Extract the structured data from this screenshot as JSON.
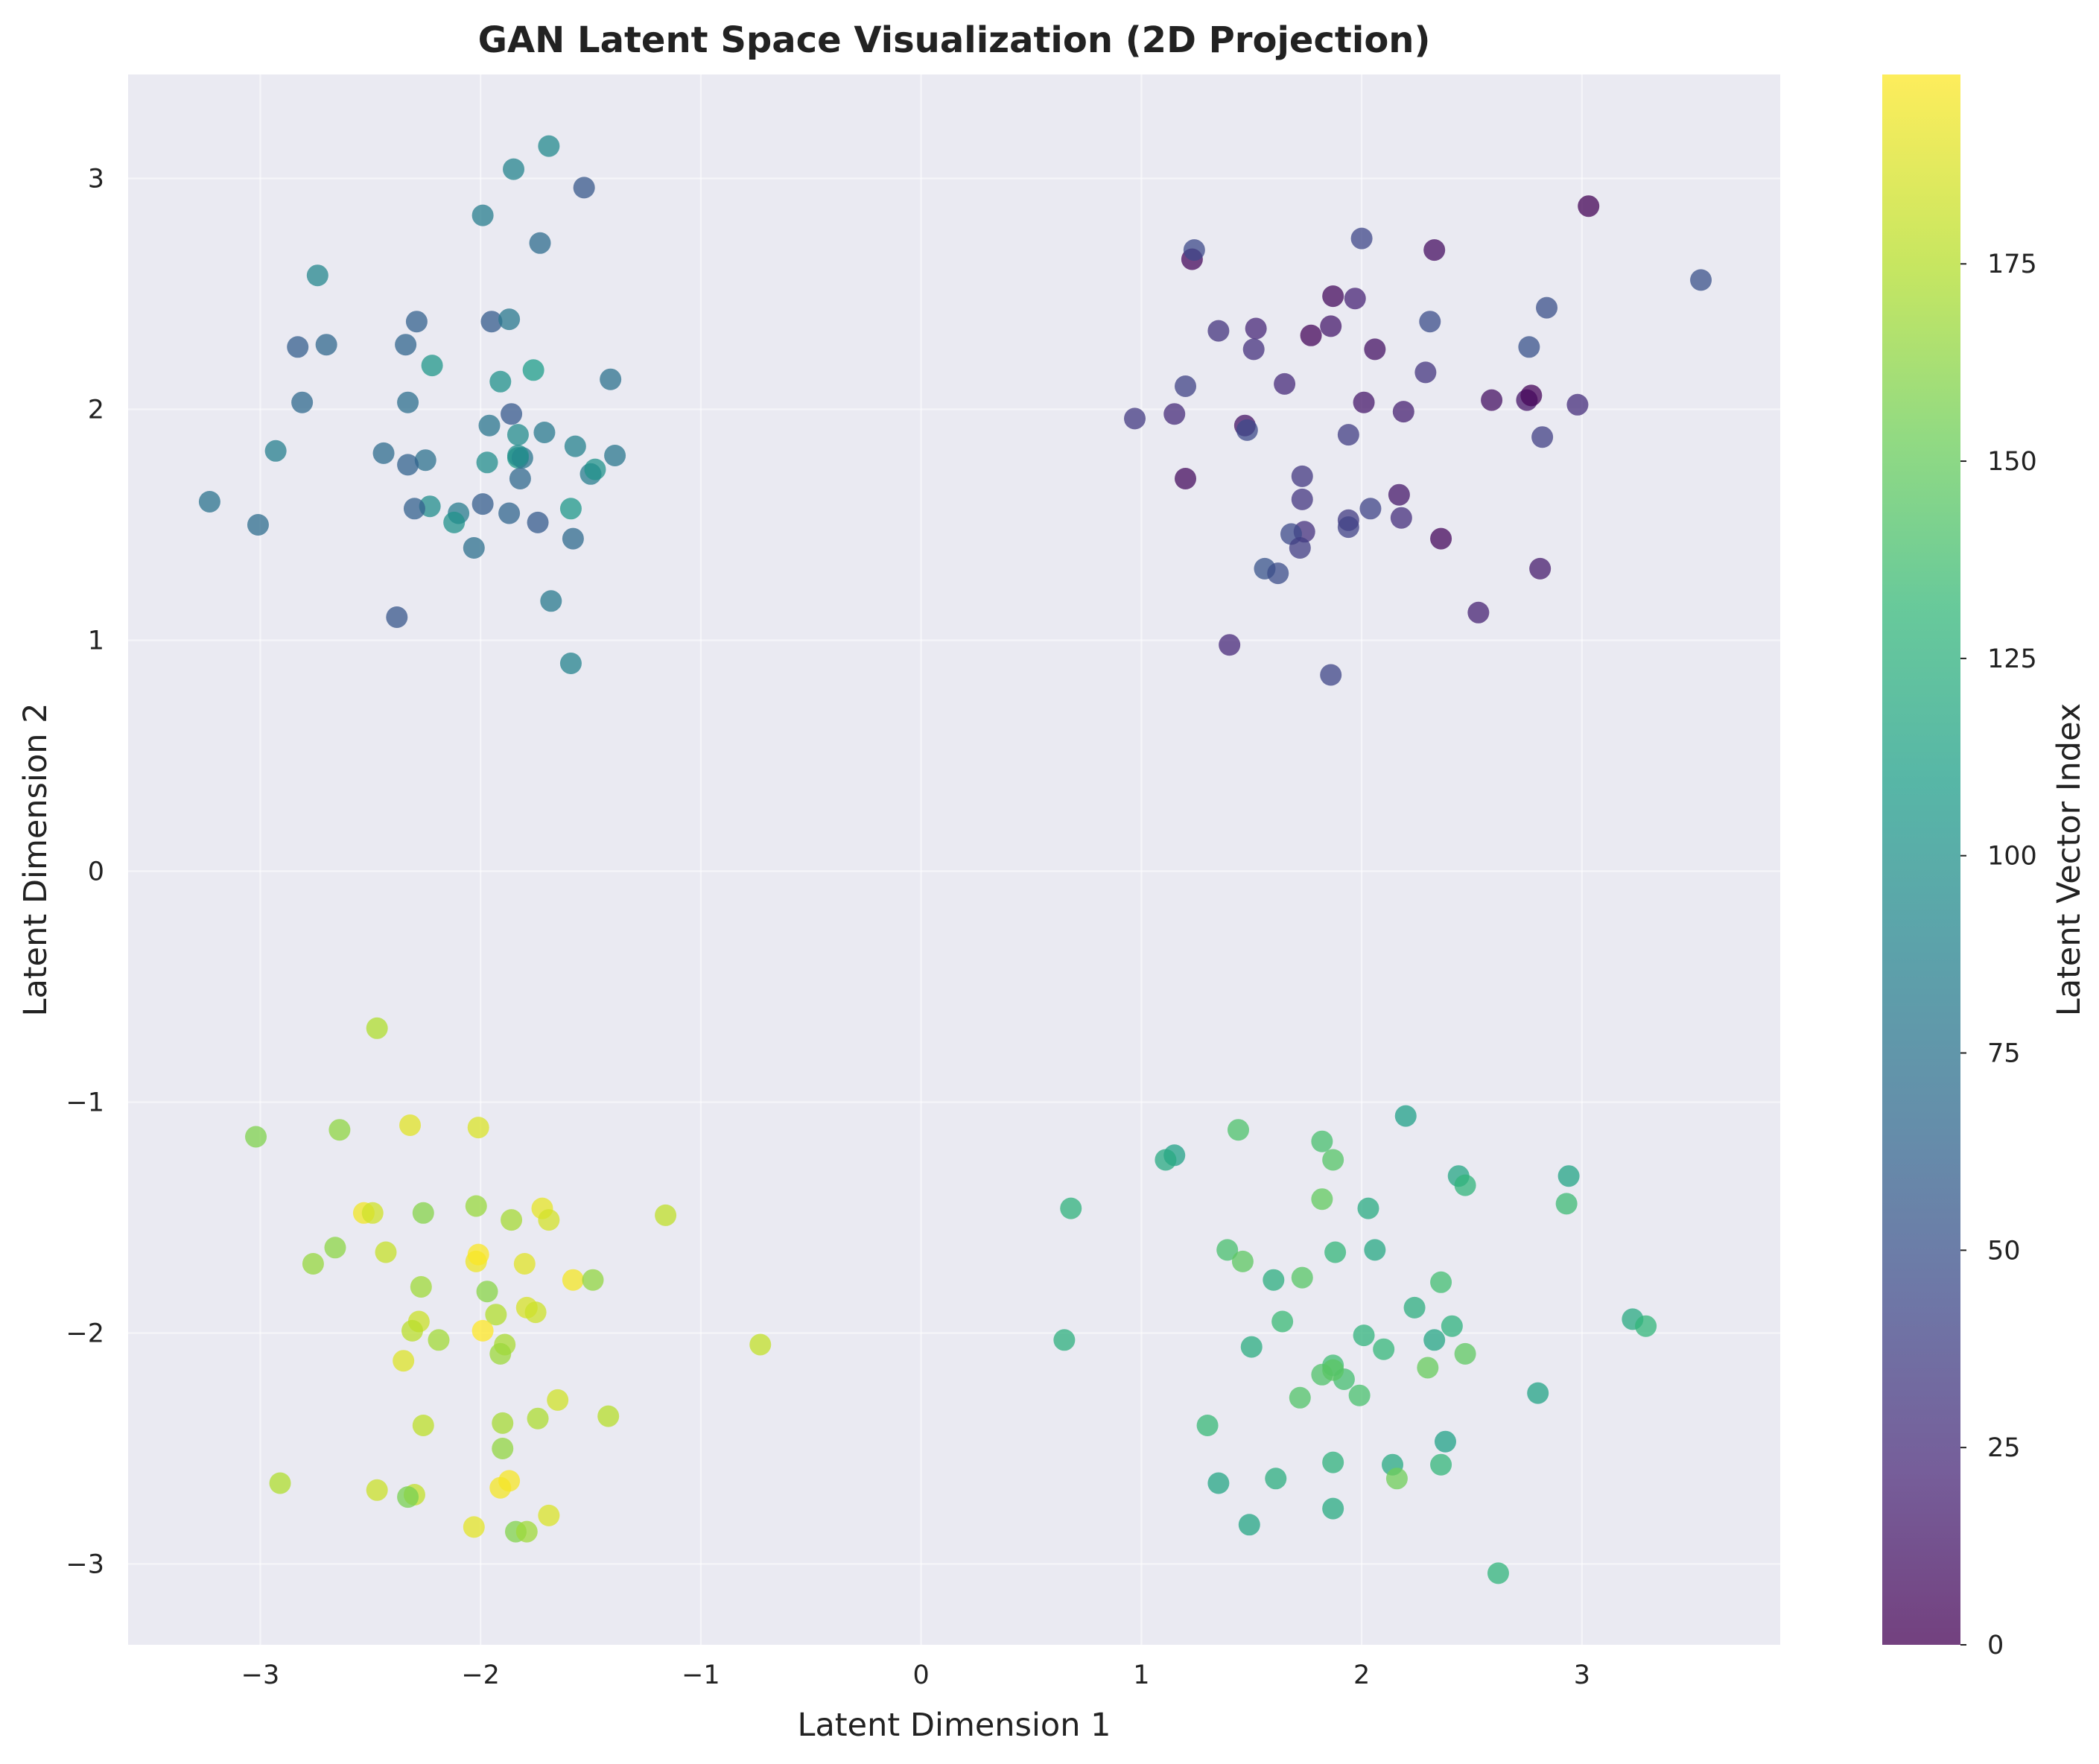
{
  "chart_data": {
    "type": "scatter",
    "title": "GAN Latent Space Visualization (2D Projection)",
    "xlabel": "Latent Dimension 1",
    "ylabel": "Latent Dimension 2",
    "xlim": [
      -3.6,
      3.9
    ],
    "ylim": [
      -3.35,
      3.45
    ],
    "xticks": [
      -3,
      -2,
      -1,
      0,
      1,
      2,
      3
    ],
    "yticks": [
      -3,
      -2,
      -1,
      0,
      1,
      2,
      3
    ],
    "grid": true,
    "colormap": "viridis",
    "colorbar": {
      "label": "Latent Vector Index",
      "range": [
        0,
        199
      ],
      "ticks": [
        0,
        25,
        50,
        75,
        100,
        125,
        150,
        175
      ]
    },
    "colors": {
      "plot_background": "#eaeaf2",
      "grid": "#ffffff"
    },
    "series": [
      {
        "points": [
          [
            3.03,
            2.88,
            2
          ],
          [
            1.23,
            2.65,
            5
          ],
          [
            2.33,
            2.69,
            8
          ],
          [
            1.87,
            2.49,
            6
          ],
          [
            1.97,
            2.48,
            20
          ],
          [
            1.52,
            2.35,
            22
          ],
          [
            1.35,
            2.34,
            30
          ],
          [
            1.77,
            2.32,
            4
          ],
          [
            1.86,
            2.36,
            15
          ],
          [
            2.06,
            2.26,
            10
          ],
          [
            1.51,
            2.26,
            28
          ],
          [
            1.65,
            2.11,
            24
          ],
          [
            1.2,
            2.1,
            40
          ],
          [
            2.59,
            2.04,
            9
          ],
          [
            2.75,
            2.04,
            12
          ],
          [
            2.77,
            2.06,
            3
          ],
          [
            2.01,
            2.03,
            14
          ],
          [
            2.98,
            2.02,
            26
          ],
          [
            2.19,
            1.99,
            18
          ],
          [
            0.97,
            1.96,
            34
          ],
          [
            1.15,
            1.98,
            25
          ],
          [
            1.47,
            1.93,
            11
          ],
          [
            1.48,
            1.91,
            44
          ],
          [
            1.94,
            1.89,
            36
          ],
          [
            2.82,
            1.88,
            38
          ],
          [
            1.2,
            1.7,
            7
          ],
          [
            1.73,
            1.71,
            33
          ],
          [
            2.17,
            1.63,
            13
          ],
          [
            1.73,
            1.61,
            32
          ],
          [
            2.04,
            1.57,
            41
          ],
          [
            1.94,
            1.52,
            35
          ],
          [
            2.18,
            1.53,
            27
          ],
          [
            1.94,
            1.49,
            39
          ],
          [
            1.74,
            1.47,
            29
          ],
          [
            1.68,
            1.46,
            46
          ],
          [
            2.36,
            1.44,
            5
          ],
          [
            1.72,
            1.4,
            37
          ],
          [
            1.56,
            1.31,
            52
          ],
          [
            1.62,
            1.29,
            48
          ],
          [
            2.81,
            1.31,
            16
          ],
          [
            2.53,
            1.12,
            19
          ],
          [
            1.4,
            0.98,
            23
          ],
          [
            1.86,
            0.85,
            42
          ],
          [
            2.0,
            2.74,
            43
          ],
          [
            1.24,
            2.69,
            45
          ],
          [
            2.31,
            2.38,
            47
          ],
          [
            2.84,
            2.44,
            49
          ],
          [
            2.29,
            2.16,
            31
          ],
          [
            2.76,
            2.27,
            51
          ],
          [
            3.54,
            2.56,
            50
          ]
        ]
      },
      {
        "points": [
          [
            -1.69,
            3.14,
            95
          ],
          [
            -1.85,
            3.04,
            90
          ],
          [
            -1.53,
            2.96,
            55
          ],
          [
            -1.99,
            2.84,
            85
          ],
          [
            -1.73,
            2.72,
            70
          ],
          [
            -2.74,
            2.58,
            92
          ],
          [
            -2.29,
            2.38,
            62
          ],
          [
            -1.95,
            2.38,
            58
          ],
          [
            -1.87,
            2.39,
            80
          ],
          [
            -2.83,
            2.27,
            60
          ],
          [
            -2.7,
            2.28,
            66
          ],
          [
            -2.34,
            2.28,
            64
          ],
          [
            -2.22,
            2.19,
            105
          ],
          [
            -1.76,
            2.17,
            110
          ],
          [
            -1.91,
            2.12,
            100
          ],
          [
            -1.41,
            2.13,
            75
          ],
          [
            -2.81,
            2.03,
            68
          ],
          [
            -2.33,
            2.03,
            72
          ],
          [
            -1.86,
            1.98,
            56
          ],
          [
            -1.96,
            1.93,
            78
          ],
          [
            -1.83,
            1.89,
            96
          ],
          [
            -1.71,
            1.9,
            82
          ],
          [
            -2.93,
            1.82,
            86
          ],
          [
            -1.57,
            1.84,
            88
          ],
          [
            -2.44,
            1.81,
            70
          ],
          [
            -2.25,
            1.78,
            74
          ],
          [
            -2.33,
            1.76,
            63
          ],
          [
            -1.97,
            1.77,
            98
          ],
          [
            -1.83,
            1.79,
            108
          ],
          [
            -1.81,
            1.79,
            77
          ],
          [
            -1.5,
            1.72,
            84
          ],
          [
            -1.48,
            1.74,
            102
          ],
          [
            -1.39,
            1.8,
            79
          ],
          [
            -1.82,
            1.7,
            67
          ],
          [
            -3.23,
            1.6,
            76
          ],
          [
            -2.23,
            1.58,
            97
          ],
          [
            -2.3,
            1.57,
            61
          ],
          [
            -1.99,
            1.59,
            59
          ],
          [
            -2.1,
            1.55,
            83
          ],
          [
            -1.87,
            1.55,
            65
          ],
          [
            -1.59,
            1.57,
            106
          ],
          [
            -2.12,
            1.51,
            101
          ],
          [
            -1.74,
            1.51,
            57
          ],
          [
            -3.01,
            1.5,
            71
          ],
          [
            -1.58,
            1.44,
            69
          ],
          [
            -2.03,
            1.4,
            73
          ],
          [
            -1.68,
            1.17,
            81
          ],
          [
            -2.38,
            1.1,
            54
          ],
          [
            -1.59,
            0.9,
            89
          ],
          [
            -1.83,
            1.8,
            99
          ]
        ]
      },
      {
        "points": [
          [
            2.2,
            -1.06,
            112
          ],
          [
            1.44,
            -1.12,
            142
          ],
          [
            1.15,
            -1.23,
            114
          ],
          [
            1.82,
            -1.17,
            140
          ],
          [
            1.11,
            -1.25,
            120
          ],
          [
            1.87,
            -1.25,
            145
          ],
          [
            2.44,
            -1.32,
            118
          ],
          [
            2.47,
            -1.36,
            130
          ],
          [
            2.94,
            -1.32,
            116
          ],
          [
            1.82,
            -1.42,
            150
          ],
          [
            0.68,
            -1.46,
            128
          ],
          [
            2.03,
            -1.46,
            122
          ],
          [
            2.93,
            -1.44,
            136
          ],
          [
            1.39,
            -1.64,
            140
          ],
          [
            1.46,
            -1.69,
            148
          ],
          [
            1.88,
            -1.65,
            132
          ],
          [
            2.06,
            -1.64,
            119
          ],
          [
            1.6,
            -1.77,
            124
          ],
          [
            1.73,
            -1.76,
            146
          ],
          [
            2.36,
            -1.78,
            138
          ],
          [
            2.24,
            -1.89,
            125
          ],
          [
            1.64,
            -1.95,
            135
          ],
          [
            2.41,
            -1.97,
            127
          ],
          [
            3.23,
            -1.94,
            121
          ],
          [
            3.29,
            -1.97,
            131
          ],
          [
            0.65,
            -2.03,
            126
          ],
          [
            1.5,
            -2.06,
            123
          ],
          [
            2.01,
            -2.01,
            129
          ],
          [
            2.1,
            -2.07,
            133
          ],
          [
            2.33,
            -2.03,
            117
          ],
          [
            2.47,
            -2.09,
            149
          ],
          [
            2.3,
            -2.15,
            152
          ],
          [
            1.87,
            -2.14,
            137
          ],
          [
            1.82,
            -2.18,
            143
          ],
          [
            1.92,
            -2.2,
            139
          ],
          [
            1.99,
            -2.27,
            141
          ],
          [
            1.72,
            -2.28,
            144
          ],
          [
            2.8,
            -2.26,
            115
          ],
          [
            1.3,
            -2.4,
            134
          ],
          [
            2.38,
            -2.47,
            113
          ],
          [
            1.87,
            -2.56,
            128
          ],
          [
            2.14,
            -2.57,
            120
          ],
          [
            2.36,
            -2.57,
            132
          ],
          [
            1.35,
            -2.65,
            118
          ],
          [
            1.61,
            -2.63,
            124
          ],
          [
            2.16,
            -2.63,
            155
          ],
          [
            1.49,
            -2.83,
            117
          ],
          [
            1.87,
            -2.76,
            122
          ],
          [
            2.62,
            -3.04,
            130
          ],
          [
            1.87,
            -2.16,
            147
          ]
        ]
      },
      {
        "points": [
          [
            -2.47,
            -0.68,
            175
          ],
          [
            -3.02,
            -1.15,
            160
          ],
          [
            -2.64,
            -1.12,
            165
          ],
          [
            -2.32,
            -1.1,
            190
          ],
          [
            -2.01,
            -1.11,
            188
          ],
          [
            -2.53,
            -1.48,
            195
          ],
          [
            -2.49,
            -1.48,
            185
          ],
          [
            -2.26,
            -1.48,
            162
          ],
          [
            -2.02,
            -1.45,
            168
          ],
          [
            -1.86,
            -1.51,
            172
          ],
          [
            -1.72,
            -1.46,
            192
          ],
          [
            -1.69,
            -1.51,
            186
          ],
          [
            -1.16,
            -1.49,
            180
          ],
          [
            -2.76,
            -1.7,
            167
          ],
          [
            -2.66,
            -1.63,
            164
          ],
          [
            -2.43,
            -1.65,
            182
          ],
          [
            -2.02,
            -1.69,
            194
          ],
          [
            -2.01,
            -1.66,
            198
          ],
          [
            -1.8,
            -1.7,
            190
          ],
          [
            -2.27,
            -1.8,
            170
          ],
          [
            -1.97,
            -1.82,
            163
          ],
          [
            -1.58,
            -1.77,
            196
          ],
          [
            -1.49,
            -1.77,
            166
          ],
          [
            -1.93,
            -1.92,
            176
          ],
          [
            -1.79,
            -1.89,
            187
          ],
          [
            -1.75,
            -1.91,
            184
          ],
          [
            -2.28,
            -1.95,
            183
          ],
          [
            -2.31,
            -1.99,
            178
          ],
          [
            -1.99,
            -1.99,
            199
          ],
          [
            -2.19,
            -2.03,
            171
          ],
          [
            -1.89,
            -2.05,
            173
          ],
          [
            -1.91,
            -2.09,
            169
          ],
          [
            -0.73,
            -2.05,
            181
          ],
          [
            -2.35,
            -2.12,
            189
          ],
          [
            -1.65,
            -2.29,
            185
          ],
          [
            -1.42,
            -2.36,
            177
          ],
          [
            -1.74,
            -2.37,
            174
          ],
          [
            -2.26,
            -2.4,
            179
          ],
          [
            -1.9,
            -2.39,
            172
          ],
          [
            -1.9,
            -2.5,
            166
          ],
          [
            -2.91,
            -2.65,
            175
          ],
          [
            -2.47,
            -2.68,
            183
          ],
          [
            -2.3,
            -2.7,
            181
          ],
          [
            -2.33,
            -2.71,
            158
          ],
          [
            -1.91,
            -2.67,
            196
          ],
          [
            -1.87,
            -2.64,
            197
          ],
          [
            -1.69,
            -2.79,
            188
          ],
          [
            -2.03,
            -2.84,
            191
          ],
          [
            -1.84,
            -2.86,
            161
          ],
          [
            -1.79,
            -2.86,
            170
          ]
        ]
      }
    ]
  }
}
